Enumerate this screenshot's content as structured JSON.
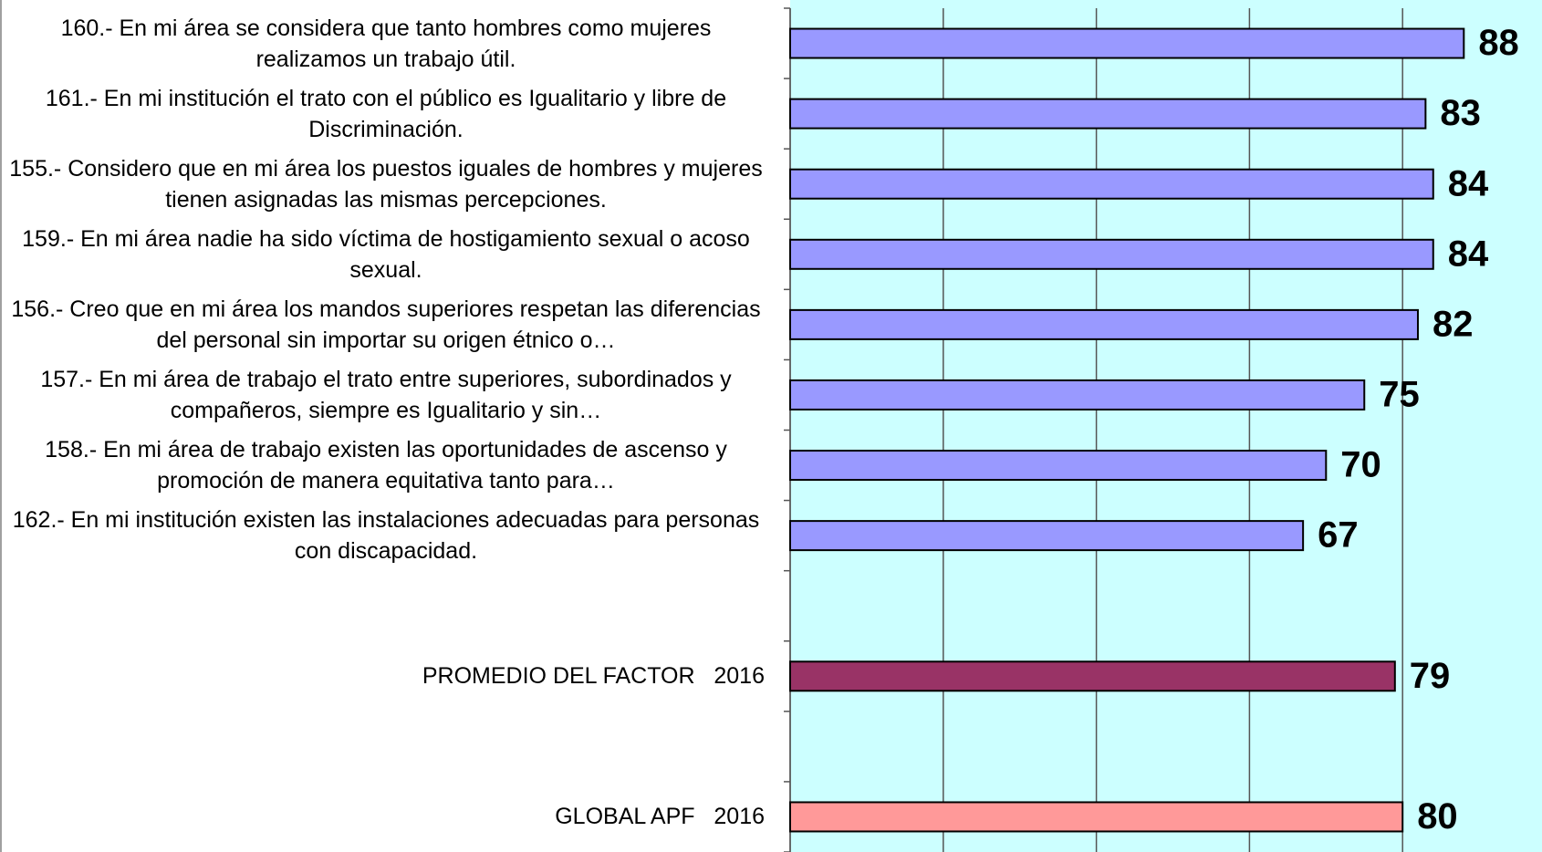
{
  "chart_data": {
    "type": "barh",
    "categories": [
      "160.- En mi área se considera que tanto hombres como mujeres realizamos un trabajo útil.",
      "161.- En mi institución el trato con el público es Igualitario y libre de Discriminación.",
      "155.- Considero que en mi área los puestos iguales de hombres y mujeres tienen asignadas las mismas percepciones.",
      "159.- En mi área nadie ha sido víctima de hostigamiento sexual o acoso sexual.",
      "156.- Creo que en mi área los mandos superiores respetan las diferencias del personal sin importar su origen étnico o…",
      "157.- En mi área de trabajo el trato entre superiores, subordinados y compañeros, siempre es Igualitario y sin…",
      "158.- En mi área de trabajo existen las oportunidades de ascenso y promoción de manera equitativa tanto para…",
      "162.- En mi institución existen las instalaciones adecuadas para personas con discapacidad.",
      null,
      "PROMEDIO DEL FACTOR   2016",
      null,
      "GLOBAL APF   2016"
    ],
    "values": [
      88,
      83,
      84,
      84,
      82,
      75,
      70,
      67,
      null,
      79,
      null,
      80
    ],
    "colors": [
      "#9999ff",
      "#9999ff",
      "#9999ff",
      "#9999ff",
      "#9999ff",
      "#9999ff",
      "#9999ff",
      "#9999ff",
      null,
      "#993366",
      null,
      "#ff9999"
    ],
    "xlim": [
      0,
      100
    ],
    "xticks": [
      0,
      20,
      40,
      60,
      80,
      100
    ],
    "grid": true
  }
}
